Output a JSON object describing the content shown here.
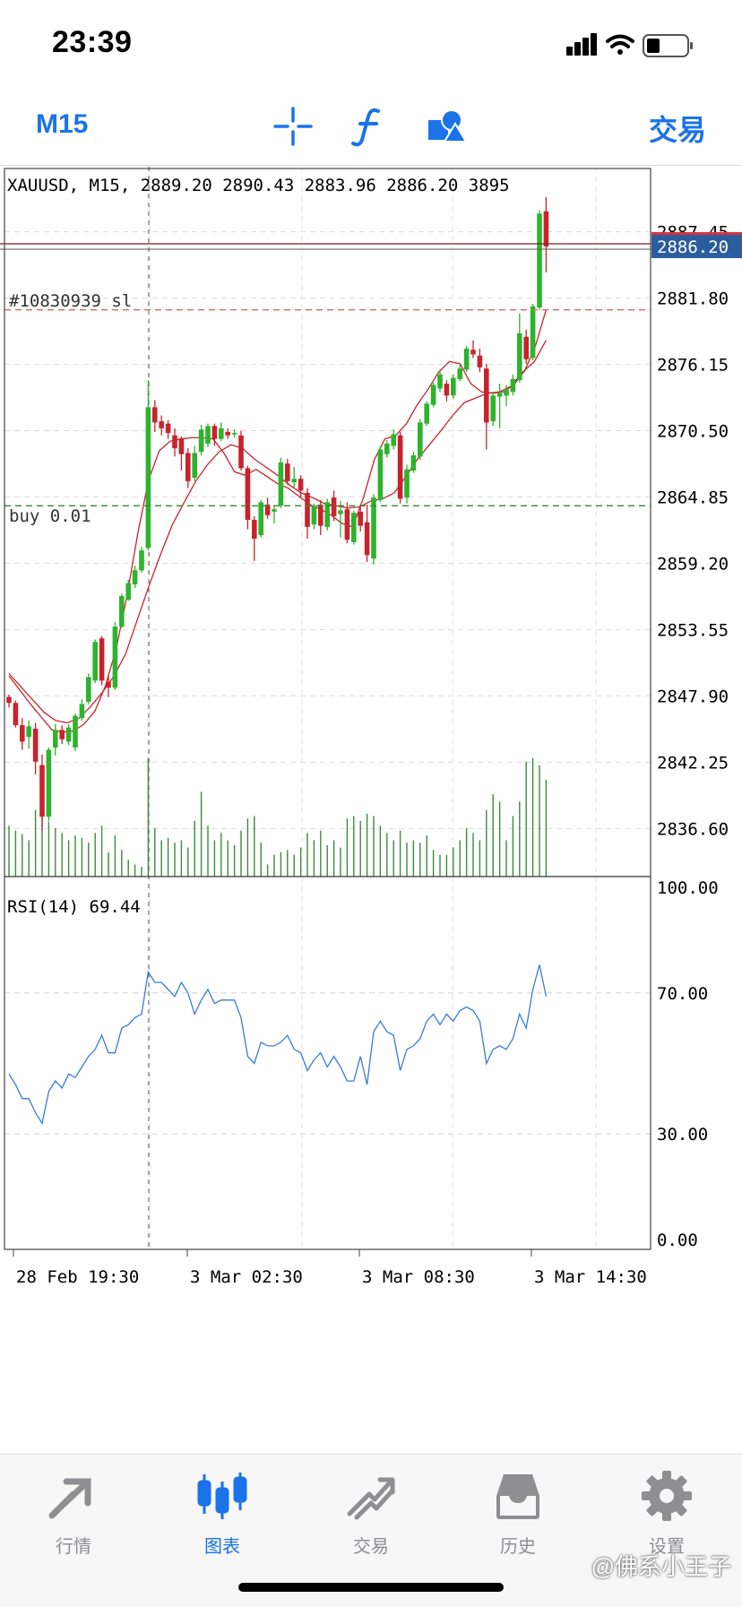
{
  "status_bar": {
    "time": "23:39"
  },
  "toolbar": {
    "timeframe_label": "M15",
    "trade_label": "交易",
    "icons": [
      "crosshair-icon",
      "indicators-icon",
      "objects-icon"
    ]
  },
  "chart": {
    "header": "XAUUSD, M15, 2889.20 2890.43 2883.96 2886.20 3895",
    "current_price_label": "2886.20",
    "sl_label": "#10830939 sl",
    "buy_label": "buy 0.01",
    "price_ticks": [
      "2887.45",
      "2881.80",
      "2876.15",
      "2870.50",
      "2864.85",
      "2859.20",
      "2853.55",
      "2847.90",
      "2842.25",
      "2836.60"
    ],
    "rsi_label": "RSI(14) 69.44",
    "rsi_ticks": [
      "100.00",
      "70.00",
      "30.00",
      "0.00"
    ],
    "time_ticks": [
      "28 Feb 19:30",
      "3 Mar 02:30",
      "3 Mar 08:30",
      "3 Mar 14:30"
    ],
    "colors": {
      "bull": "#2db32d",
      "bear": "#c8232c",
      "ma": "#c8232c",
      "rsi": "#3a7bd5",
      "buy_line": "#2e8b2e",
      "sl_line": "#d66a6a",
      "price_badge": "#2b5d9c",
      "volume": "#3c8a3c"
    }
  },
  "chart_data": {
    "type": "candlestick",
    "symbol": "XAUUSD",
    "timeframe": "M15",
    "ohlc_header": {
      "open": 2889.2,
      "high": 2890.43,
      "low": 2883.96,
      "close": 2886.2,
      "volume": 3895
    },
    "y_range": [
      2832.5,
      2893.0
    ],
    "current_price": 2886.2,
    "sl_level": 2880.8,
    "buy_level": 2864.1,
    "candles": [
      [
        2847.8,
        2848.0,
        2846.9,
        2847.3
      ],
      [
        2847.3,
        2847.5,
        2845.2,
        2845.4
      ],
      [
        2845.4,
        2846.0,
        2843.3,
        2844.0
      ],
      [
        2844.4,
        2845.8,
        2843.4,
        2845.3
      ],
      [
        2845.1,
        2845.6,
        2841.2,
        2842.3
      ],
      [
        2842.0,
        2842.9,
        2836.4,
        2837.6
      ],
      [
        2837.6,
        2843.5,
        2837.2,
        2843.3
      ],
      [
        2843.5,
        2845.5,
        2842.8,
        2845.0
      ],
      [
        2845.0,
        2845.4,
        2843.8,
        2844.2
      ],
      [
        2844.0,
        2845.5,
        2843.7,
        2845.2
      ],
      [
        2843.5,
        2846.4,
        2843.2,
        2846.2
      ],
      [
        2846.0,
        2847.6,
        2845.8,
        2847.2
      ],
      [
        2847.4,
        2849.8,
        2847.2,
        2849.5
      ],
      [
        2849.2,
        2852.7,
        2849.0,
        2852.5
      ],
      [
        2852.8,
        2853.0,
        2848.8,
        2849.2
      ],
      [
        2849.1,
        2849.7,
        2847.8,
        2848.6
      ],
      [
        2848.6,
        2854.2,
        2848.4,
        2853.8
      ],
      [
        2853.8,
        2856.6,
        2853.7,
        2856.4
      ],
      [
        2856.1,
        2857.8,
        2856.0,
        2857.5
      ],
      [
        2857.4,
        2859.0,
        2857.1,
        2858.6
      ],
      [
        2858.6,
        2860.6,
        2858.4,
        2860.3
      ],
      [
        2860.5,
        2874.8,
        2860.3,
        2872.5
      ],
      [
        2872.5,
        2873.1,
        2870.4,
        2871.2
      ],
      [
        2871.3,
        2871.8,
        2870.1,
        2870.7
      ],
      [
        2871.1,
        2871.4,
        2869.8,
        2870.3
      ],
      [
        2870.1,
        2870.7,
        2868.3,
        2869.0
      ],
      [
        2869.8,
        2870.0,
        2867.1,
        2868.5
      ],
      [
        2868.6,
        2869.0,
        2865.6,
        2866.2
      ],
      [
        2866.5,
        2869.2,
        2866.2,
        2868.6
      ],
      [
        2868.7,
        2871.0,
        2868.4,
        2870.6
      ],
      [
        2869.4,
        2871.1,
        2869.1,
        2870.9
      ],
      [
        2870.9,
        2871.1,
        2869.2,
        2869.8
      ],
      [
        2869.8,
        2871.2,
        2869.6,
        2870.7
      ],
      [
        2870.4,
        2870.7,
        2869.8,
        2870.1
      ],
      [
        2870.2,
        2870.6,
        2869.9,
        2870.3
      ],
      [
        2870.1,
        2870.5,
        2867.1,
        2867.3
      ],
      [
        2867.3,
        2867.5,
        2862.1,
        2862.9
      ],
      [
        2862.9,
        2863.2,
        2859.4,
        2861.3
      ],
      [
        2861.6,
        2864.6,
        2861.4,
        2864.4
      ],
      [
        2864.2,
        2864.8,
        2863.0,
        2863.3
      ],
      [
        2863.6,
        2864.1,
        2862.6,
        2863.8
      ],
      [
        2864.1,
        2868.2,
        2863.9,
        2867.8
      ],
      [
        2867.7,
        2868.1,
        2865.9,
        2866.2
      ],
      [
        2866.1,
        2867.4,
        2865.6,
        2866.4
      ],
      [
        2866.4,
        2866.7,
        2864.8,
        2865.4
      ],
      [
        2865.2,
        2865.6,
        2861.3,
        2862.3
      ],
      [
        2862.5,
        2864.3,
        2862.1,
        2864.1
      ],
      [
        2864.2,
        2864.6,
        2861.6,
        2862.4
      ],
      [
        2862.3,
        2864.7,
        2862.0,
        2864.4
      ],
      [
        2864.8,
        2865.4,
        2862.8,
        2863.2
      ],
      [
        2863.4,
        2864.5,
        2861.4,
        2863.7
      ],
      [
        2863.8,
        2864.4,
        2860.9,
        2861.2
      ],
      [
        2861.0,
        2863.7,
        2860.8,
        2863.5
      ],
      [
        2863.6,
        2864.0,
        2861.9,
        2862.4
      ],
      [
        2862.7,
        2864.2,
        2859.3,
        2859.9
      ],
      [
        2859.6,
        2865.1,
        2859.1,
        2864.8
      ],
      [
        2864.6,
        2869.2,
        2864.4,
        2868.9
      ],
      [
        2868.5,
        2869.7,
        2868.2,
        2869.4
      ],
      [
        2869.2,
        2870.6,
        2868.9,
        2870.2
      ],
      [
        2870.1,
        2870.4,
        2864.3,
        2864.7
      ],
      [
        2864.8,
        2867.6,
        2864.3,
        2867.2
      ],
      [
        2867.1,
        2868.7,
        2866.9,
        2868.4
      ],
      [
        2868.3,
        2871.5,
        2868.0,
        2871.2
      ],
      [
        2871.1,
        2873.0,
        2870.9,
        2872.8
      ],
      [
        2872.7,
        2874.6,
        2872.5,
        2874.4
      ],
      [
        2874.1,
        2875.6,
        2873.8,
        2875.3
      ],
      [
        2874.5,
        2874.8,
        2873.0,
        2873.5
      ],
      [
        2873.5,
        2875.3,
        2873.2,
        2875.0
      ],
      [
        2874.9,
        2876.2,
        2874.7,
        2875.8
      ],
      [
        2875.7,
        2877.7,
        2875.5,
        2877.5
      ],
      [
        2877.4,
        2878.2,
        2876.7,
        2877.0
      ],
      [
        2876.9,
        2877.5,
        2875.5,
        2875.9
      ],
      [
        2875.8,
        2876.2,
        2868.9,
        2871.2
      ],
      [
        2871.3,
        2873.8,
        2870.9,
        2873.5
      ],
      [
        2873.4,
        2874.5,
        2870.7,
        2873.7
      ],
      [
        2873.5,
        2874.4,
        2872.6,
        2874.0
      ],
      [
        2873.8,
        2875.3,
        2873.5,
        2874.9
      ],
      [
        2874.8,
        2880.5,
        2874.6,
        2878.8
      ],
      [
        2878.5,
        2879.1,
        2876.2,
        2876.6
      ],
      [
        2876.7,
        2881.3,
        2876.5,
        2881.1
      ],
      [
        2881.0,
        2889.3,
        2880.8,
        2889.0
      ],
      [
        2889.2,
        2890.4,
        2884.0,
        2886.2
      ]
    ],
    "ma_fast": [
      2849.6,
      2848.4,
      2847.2,
      2846.1,
      2845.0,
      2844.8,
      2844.9,
      2845.5,
      2846.6,
      2848.8,
      2852.0,
      2856.5,
      2861.8,
      2866.3,
      2868.8,
      2869.6,
      2869.8,
      2869.9,
      2869.9,
      2869.8,
      2868.6,
      2867.0,
      2866.7,
      2867.2,
      2866.6,
      2866.0,
      2865.6,
      2864.9,
      2864.2,
      2863.8,
      2863.3,
      2862.6,
      2862.3,
      2864.8,
      2868.0,
      2869.8,
      2870.1,
      2871.1,
      2872.7,
      2874.0,
      2875.5,
      2876.4,
      2876.2,
      2874.5,
      2873.8,
      2873.7,
      2873.8,
      2874.4,
      2875.6,
      2877.7,
      2880.8
    ],
    "ma_slow": [
      2849.8,
      2848.7,
      2847.6,
      2846.5,
      2845.8,
      2845.6,
      2846.0,
      2847.0,
      2848.2,
      2849.6,
      2851.5,
      2854.4,
      2857.3,
      2860.0,
      2862.5,
      2864.4,
      2866.2,
      2867.6,
      2868.7,
      2869.3,
      2869.0,
      2868.1,
      2867.4,
      2866.7,
      2865.9,
      2865.2,
      2864.8,
      2864.3,
      2864.1,
      2863.9,
      2864.0,
      2864.5,
      2864.7,
      2865.2,
      2866.6,
      2868.1,
      2869.3,
      2870.5,
      2871.8,
      2872.9,
      2873.3,
      2873.7,
      2873.8,
      2874.3,
      2875.5,
      2876.4,
      2878.2
    ],
    "volume_rel": [
      0.42,
      0.38,
      0.35,
      0.3,
      0.55,
      0.7,
      0.45,
      0.4,
      0.36,
      0.3,
      0.34,
      0.32,
      0.28,
      0.36,
      0.42,
      0.2,
      0.34,
      0.22,
      0.14,
      0.1,
      0.08,
      0.98,
      0.4,
      0.3,
      0.32,
      0.28,
      0.3,
      0.24,
      0.46,
      0.7,
      0.42,
      0.3,
      0.36,
      0.3,
      0.26,
      0.38,
      0.48,
      0.5,
      0.28,
      0.1,
      0.18,
      0.2,
      0.22,
      0.18,
      0.24,
      0.36,
      0.3,
      0.38,
      0.26,
      0.3,
      0.24,
      0.48,
      0.5,
      0.46,
      0.52,
      0.5,
      0.42,
      0.36,
      0.3,
      0.38,
      0.28,
      0.3,
      0.28,
      0.34,
      0.22,
      0.18,
      0.18,
      0.24,
      0.3,
      0.4,
      0.36,
      0.3,
      0.55,
      0.68,
      0.62,
      0.3,
      0.5,
      0.62,
      0.95,
      0.98,
      0.92,
      0.8
    ],
    "rsi": {
      "period": 14,
      "value": 69.44,
      "levels": [
        70,
        30
      ],
      "y_range": [
        0,
        100
      ],
      "values": [
        47,
        44,
        40,
        40,
        36,
        33,
        42,
        45,
        43,
        47,
        46,
        49,
        52,
        54,
        58,
        53,
        53,
        60,
        61,
        63,
        64,
        76,
        73,
        73,
        71,
        69,
        73,
        70,
        64,
        68,
        71,
        67,
        68,
        68,
        68,
        63,
        52,
        50,
        56,
        55,
        55,
        56,
        58,
        54,
        53,
        48,
        51,
        53,
        49,
        52,
        49,
        45,
        45,
        52,
        44,
        59,
        62,
        59,
        58,
        48,
        54,
        55,
        57,
        62,
        64,
        61,
        64,
        62,
        65,
        66,
        65,
        62,
        50,
        54,
        55,
        54,
        57,
        64,
        60,
        71,
        78,
        69
      ]
    },
    "x_ticks": [
      "28 Feb 19:30",
      "3 Mar 02:30",
      "3 Mar 08:30",
      "3 Mar 14:30"
    ]
  }
}
